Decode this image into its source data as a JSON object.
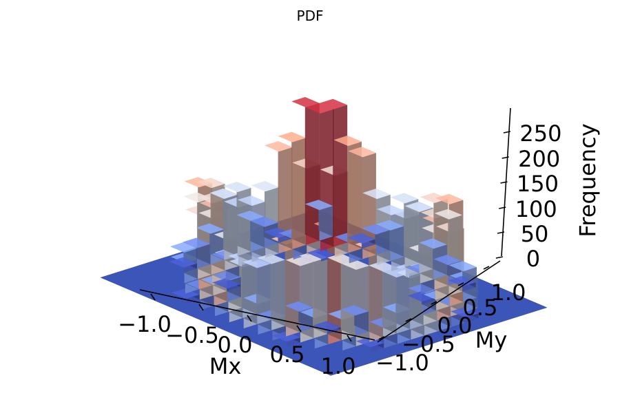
{
  "chart_data": {
    "type": "bar3d",
    "title": "PDF",
    "xlabel": "Mx",
    "ylabel": "My",
    "zlabel": "Frequency",
    "xlim": [
      -1.25,
      1.25
    ],
    "ylim": [
      -1.25,
      1.25
    ],
    "zlim": [
      0,
      290
    ],
    "x_ticks": [
      -1.0,
      -0.5,
      0.0,
      0.5,
      1.0
    ],
    "y_ticks": [
      -1.0,
      -0.5,
      0.0,
      0.5,
      1.0
    ],
    "z_ticks": [
      0,
      50,
      100,
      150,
      200,
      250
    ],
    "x_tick_labels": [
      "−1.0",
      "−0.5",
      "0.0",
      "0.5",
      "1.0"
    ],
    "y_tick_labels": [
      "−1.0",
      "−0.5",
      "0.0",
      "0.5",
      "1.0"
    ],
    "z_tick_labels": [
      "0",
      "50",
      "100",
      "150",
      "200",
      "250"
    ],
    "bin_edges": [
      -1.2,
      -1.05,
      -0.9,
      -0.75,
      -0.6,
      -0.45,
      -0.3,
      -0.15,
      0.0,
      0.15,
      0.3,
      0.45,
      0.6,
      0.75,
      0.9,
      1.05,
      1.2
    ],
    "frequency": [
      [
        0,
        0,
        0,
        0,
        0,
        0,
        0,
        0,
        0,
        0,
        0,
        0,
        0,
        0,
        0,
        0
      ],
      [
        0,
        0,
        0,
        0,
        10,
        40,
        60,
        120,
        125,
        60,
        40,
        10,
        0,
        0,
        0,
        0
      ],
      [
        0,
        0,
        0,
        60,
        150,
        180,
        130,
        110,
        110,
        140,
        190,
        165,
        60,
        0,
        0,
        0
      ],
      [
        0,
        0,
        60,
        225,
        150,
        40,
        0,
        0,
        0,
        0,
        40,
        150,
        200,
        60,
        0,
        0
      ],
      [
        0,
        10,
        150,
        150,
        5,
        0,
        0,
        0,
        0,
        0,
        0,
        5,
        160,
        150,
        10,
        0
      ],
      [
        0,
        40,
        180,
        40,
        0,
        0,
        0,
        0,
        0,
        0,
        0,
        0,
        40,
        170,
        40,
        0
      ],
      [
        0,
        60,
        130,
        0,
        0,
        0,
        0,
        0,
        0,
        0,
        0,
        0,
        0,
        140,
        60,
        0
      ],
      [
        0,
        120,
        110,
        0,
        0,
        0,
        0,
        0,
        0,
        0,
        0,
        0,
        0,
        115,
        120,
        0
      ],
      [
        0,
        125,
        110,
        0,
        0,
        0,
        0,
        0,
        0,
        0,
        0,
        0,
        0,
        110,
        125,
        0
      ],
      [
        0,
        60,
        140,
        0,
        0,
        0,
        0,
        0,
        0,
        0,
        0,
        0,
        0,
        130,
        60,
        0
      ],
      [
        0,
        40,
        190,
        40,
        0,
        0,
        0,
        0,
        0,
        0,
        0,
        0,
        40,
        200,
        40,
        0
      ],
      [
        0,
        10,
        165,
        150,
        5,
        0,
        0,
        0,
        0,
        0,
        0,
        5,
        160,
        210,
        10,
        0
      ],
      [
        0,
        0,
        60,
        200,
        160,
        40,
        0,
        0,
        0,
        0,
        40,
        170,
        270,
        270,
        0,
        0
      ],
      [
        0,
        0,
        0,
        60,
        150,
        170,
        140,
        115,
        110,
        130,
        200,
        210,
        270,
        60,
        0,
        0
      ],
      [
        0,
        0,
        0,
        0,
        10,
        40,
        60,
        120,
        125,
        60,
        40,
        10,
        0,
        0,
        0,
        0
      ],
      [
        0,
        0,
        0,
        0,
        0,
        0,
        0,
        0,
        0,
        0,
        0,
        0,
        0,
        0,
        0,
        0
      ]
    ],
    "colormap": "coolwarm",
    "grid": false
  }
}
